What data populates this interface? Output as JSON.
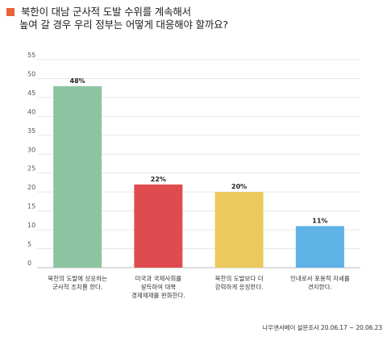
{
  "title": {
    "line1": "북한이 대남 군사적 도발 수위를 계속해서",
    "line2": "높여 갈 경우 우리 정부는 어떻게 대응해야 할까요?",
    "marker_color": "#e8623a"
  },
  "chart_data": {
    "type": "bar",
    "categories": [
      [
        "북한의 도발에 상응하는",
        "군사적 조치를 한다."
      ],
      [
        "미국과 국제사회를",
        "설득하여 대북",
        "경제제재를 완화한다."
      ],
      [
        "북한의 도발보다 더",
        "강력하게 응징한다."
      ],
      [
        "인내로서 포용적 자세를",
        "견지한다."
      ]
    ],
    "values": [
      48,
      22,
      20,
      11
    ],
    "value_labels": [
      "48%",
      "22%",
      "20%",
      "11%"
    ],
    "colors": [
      "#8dc5a2",
      "#e04b4f",
      "#ecc95c",
      "#5fb2e6"
    ],
    "ylim": [
      0,
      55
    ],
    "yticks": [
      0,
      5,
      10,
      15,
      20,
      25,
      30,
      35,
      40,
      45,
      50,
      55
    ],
    "grid": true,
    "xlabel": "",
    "ylabel": ""
  },
  "source": "나우앤서베이 설문조사 20.06.17 ~ 20.06.23"
}
